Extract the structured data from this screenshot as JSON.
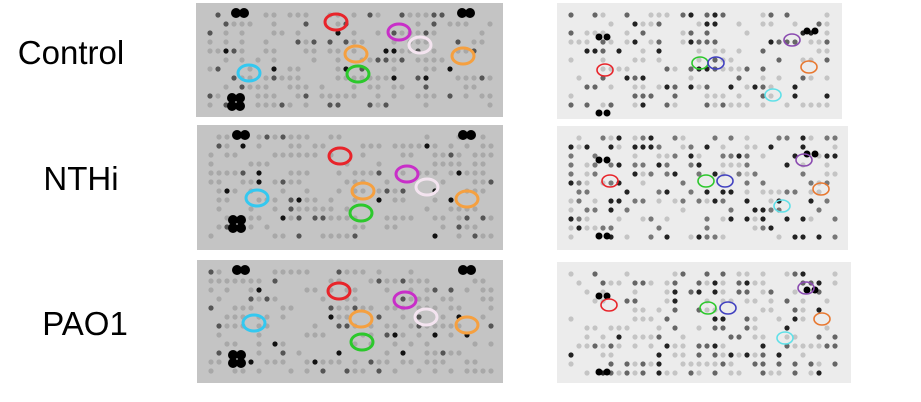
{
  "rows": [
    {
      "label": "Control"
    },
    {
      "label": "NTHi"
    },
    {
      "label": "PAO1"
    }
  ],
  "colors": {
    "red": "#e8242a",
    "magenta": "#c82fc8",
    "white": "#f4e4f0",
    "orange": "#f5a040",
    "cyan": "#34c8f0",
    "green": "#2cc82c",
    "purple": "#8a4ab0",
    "blue": "#4040c0",
    "orange_right": "#e87830",
    "cyan_right": "#60e0e8",
    "membrane_left": "#c4c4c4",
    "membrane_right": "#ececec"
  }
}
